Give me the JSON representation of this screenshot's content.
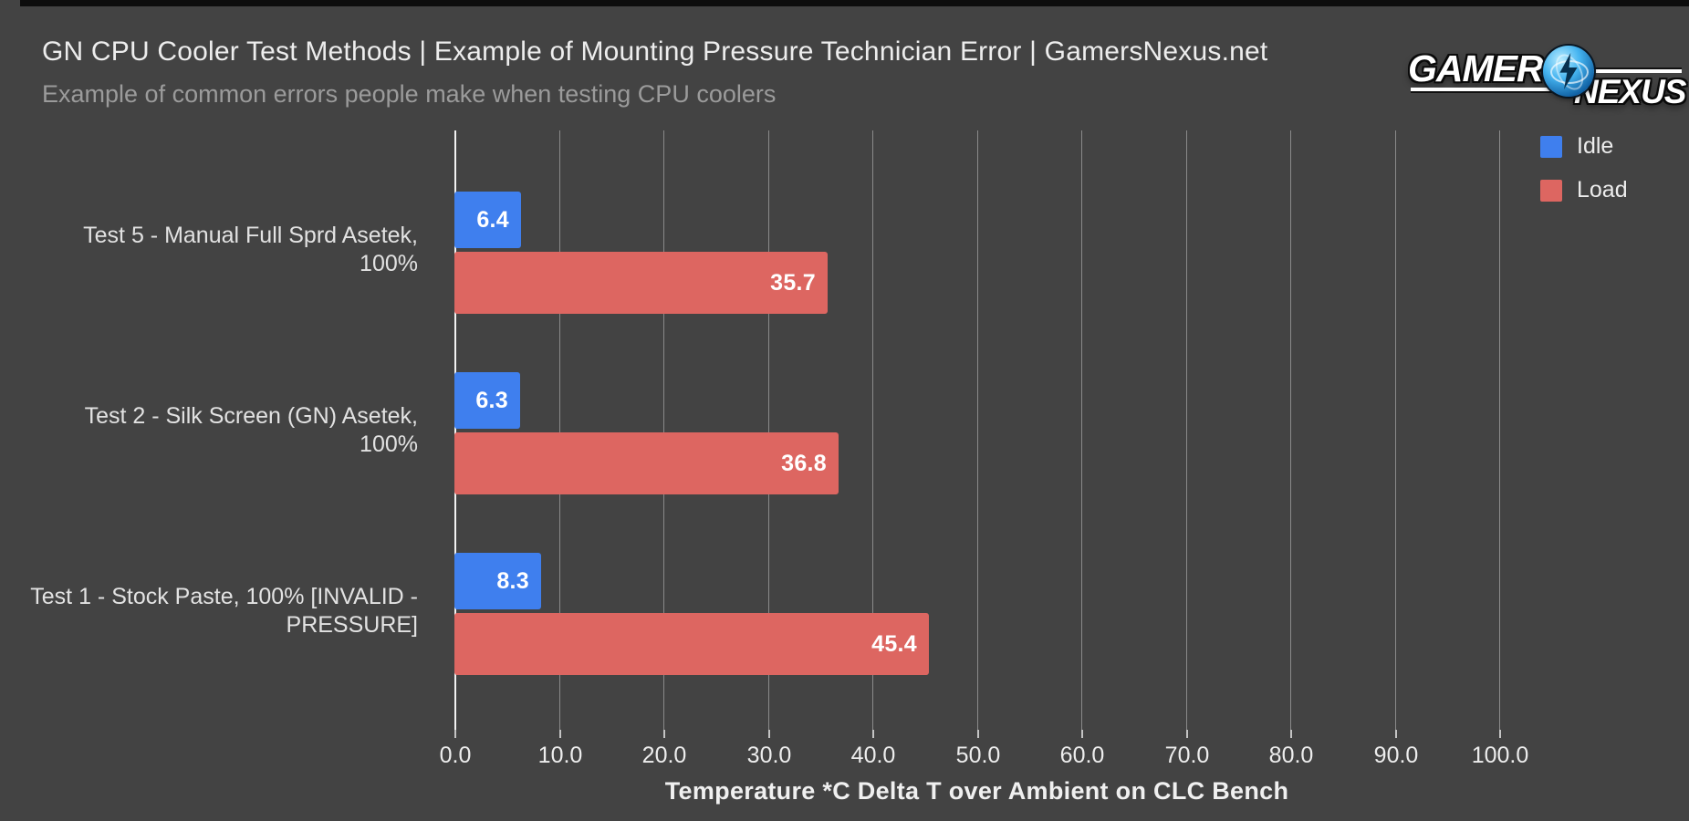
{
  "logo": {
    "part1": "GAMERS",
    "part2": "NEXUS",
    "icon": "atom-icon"
  },
  "colors": {
    "background": "#434343",
    "gridline": "#8a8a8a",
    "axis_zero_line": "#f2f2f2",
    "title_text": "#ededed",
    "subtitle_text": "#9b9b9b",
    "idle_blue": "#3f7fee",
    "load_red": "#dd6661",
    "bar_value_text": "#ffffff"
  },
  "chart_data": {
    "type": "bar",
    "orientation": "horizontal",
    "title": "GN CPU Cooler Test Methods | Example of Mounting Pressure Technician Error | GamersNexus.net",
    "subtitle": "Example of common errors people make when testing CPU coolers",
    "categories": [
      "Test 5 - Manual Full Sprd Asetek, 100%",
      "Test 2 - Silk Screen (GN) Asetek, 100%",
      "Test 1 - Stock Paste, 100% [INVALID - PRESSURE]"
    ],
    "series": [
      {
        "name": "Idle",
        "color": "#3f7fee",
        "values": [
          6.4,
          6.3,
          8.3
        ]
      },
      {
        "name": "Load",
        "color": "#dd6661",
        "values": [
          35.7,
          36.8,
          45.4
        ]
      }
    ],
    "xlabel": "Temperature *C Delta T over Ambient on CLC Bench",
    "xlim": [
      0,
      100
    ],
    "xticks": [
      0,
      10,
      20,
      30,
      40,
      50,
      60,
      70,
      80,
      90,
      100
    ],
    "xtick_labels": [
      "0.0",
      "10.0",
      "20.0",
      "30.0",
      "40.0",
      "50.0",
      "60.0",
      "70.0",
      "80.0",
      "90.0",
      "100.0"
    ],
    "grid": "vertical gridlines on",
    "legend_position": "top-right",
    "value_labels": "inside bar end, one decimal"
  }
}
